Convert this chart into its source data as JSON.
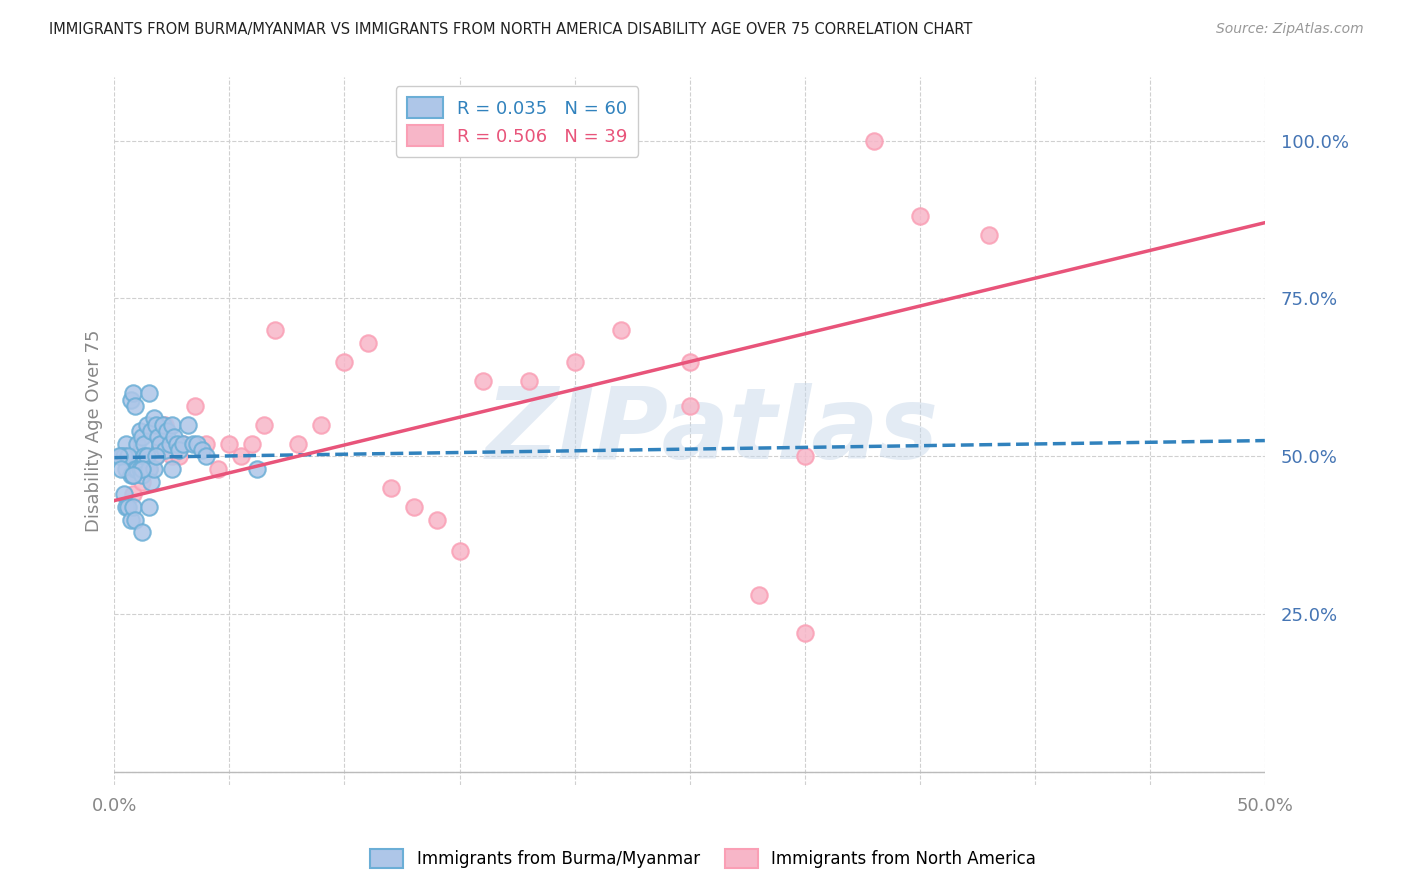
{
  "title": "IMMIGRANTS FROM BURMA/MYANMAR VS IMMIGRANTS FROM NORTH AMERICA DISABILITY AGE OVER 75 CORRELATION CHART",
  "source": "Source: ZipAtlas.com",
  "ylabel": "Disability Age Over 75",
  "ytick_vals": [
    0.0,
    0.25,
    0.5,
    0.75,
    1.0
  ],
  "ytick_labels": [
    "",
    "25.0%",
    "50.0%",
    "75.0%",
    "100.0%"
  ],
  "xtick_vals": [
    0.0,
    0.05,
    0.1,
    0.15,
    0.2,
    0.25,
    0.3,
    0.35,
    0.4,
    0.45,
    0.5
  ],
  "xlim": [
    0.0,
    0.5
  ],
  "ylim": [
    -0.02,
    1.1
  ],
  "legend_blue_label": "R = 0.035   N = 60",
  "legend_pink_label": "R = 0.506   N = 39",
  "blue_fill_color": "#aec6e8",
  "blue_edge_color": "#6baed6",
  "pink_fill_color": "#f7b6c8",
  "pink_edge_color": "#fa9fb5",
  "blue_line_color": "#3182bd",
  "pink_line_color": "#e8547a",
  "watermark": "ZIPatlas",
  "watermark_color": "#c8d8ea",
  "blue_scatter_x": [
    0.005,
    0.007,
    0.008,
    0.009,
    0.01,
    0.01,
    0.011,
    0.012,
    0.013,
    0.014,
    0.015,
    0.016,
    0.017,
    0.018,
    0.019,
    0.02,
    0.021,
    0.022,
    0.023,
    0.024,
    0.025,
    0.026,
    0.027,
    0.028,
    0.03,
    0.032,
    0.034,
    0.036,
    0.038,
    0.04,
    0.003,
    0.004,
    0.005,
    0.006,
    0.007,
    0.008,
    0.009,
    0.01,
    0.011,
    0.012,
    0.013,
    0.014,
    0.015,
    0.016,
    0.017,
    0.018,
    0.002,
    0.003,
    0.004,
    0.005,
    0.006,
    0.007,
    0.008,
    0.009,
    0.012,
    0.015,
    0.025,
    0.062,
    0.012,
    0.008
  ],
  "blue_scatter_y": [
    0.52,
    0.59,
    0.6,
    0.58,
    0.5,
    0.52,
    0.54,
    0.53,
    0.52,
    0.55,
    0.6,
    0.54,
    0.56,
    0.55,
    0.53,
    0.52,
    0.55,
    0.51,
    0.54,
    0.52,
    0.55,
    0.53,
    0.52,
    0.51,
    0.52,
    0.55,
    0.52,
    0.52,
    0.51,
    0.5,
    0.5,
    0.5,
    0.48,
    0.5,
    0.47,
    0.47,
    0.48,
    0.48,
    0.48,
    0.47,
    0.5,
    0.5,
    0.48,
    0.46,
    0.48,
    0.5,
    0.5,
    0.48,
    0.44,
    0.42,
    0.42,
    0.4,
    0.42,
    0.4,
    0.38,
    0.42,
    0.48,
    0.48,
    0.48,
    0.47
  ],
  "pink_scatter_x": [
    0.005,
    0.008,
    0.01,
    0.012,
    0.015,
    0.018,
    0.02,
    0.022,
    0.025,
    0.028,
    0.03,
    0.035,
    0.04,
    0.045,
    0.05,
    0.055,
    0.06,
    0.065,
    0.07,
    0.08,
    0.09,
    0.1,
    0.11,
    0.12,
    0.13,
    0.14,
    0.15,
    0.16,
    0.18,
    0.2,
    0.22,
    0.25,
    0.28,
    0.3,
    0.35,
    0.38,
    0.25,
    0.3,
    0.33
  ],
  "pink_scatter_y": [
    0.5,
    0.44,
    0.5,
    0.46,
    0.48,
    0.5,
    0.52,
    0.55,
    0.5,
    0.5,
    0.52,
    0.58,
    0.52,
    0.48,
    0.52,
    0.5,
    0.52,
    0.55,
    0.7,
    0.52,
    0.55,
    0.65,
    0.68,
    0.45,
    0.42,
    0.4,
    0.35,
    0.62,
    0.62,
    0.65,
    0.7,
    0.58,
    0.28,
    0.22,
    0.88,
    0.85,
    0.65,
    0.5,
    1.0
  ],
  "blue_trend": [
    0.0,
    0.5,
    0.498,
    0.525
  ],
  "pink_trend": [
    0.0,
    0.5,
    0.43,
    0.87
  ],
  "grid_color": "#d0d0d0",
  "right_axis_color": "#4575b4",
  "axis_color": "#888888",
  "background_color": "#ffffff"
}
